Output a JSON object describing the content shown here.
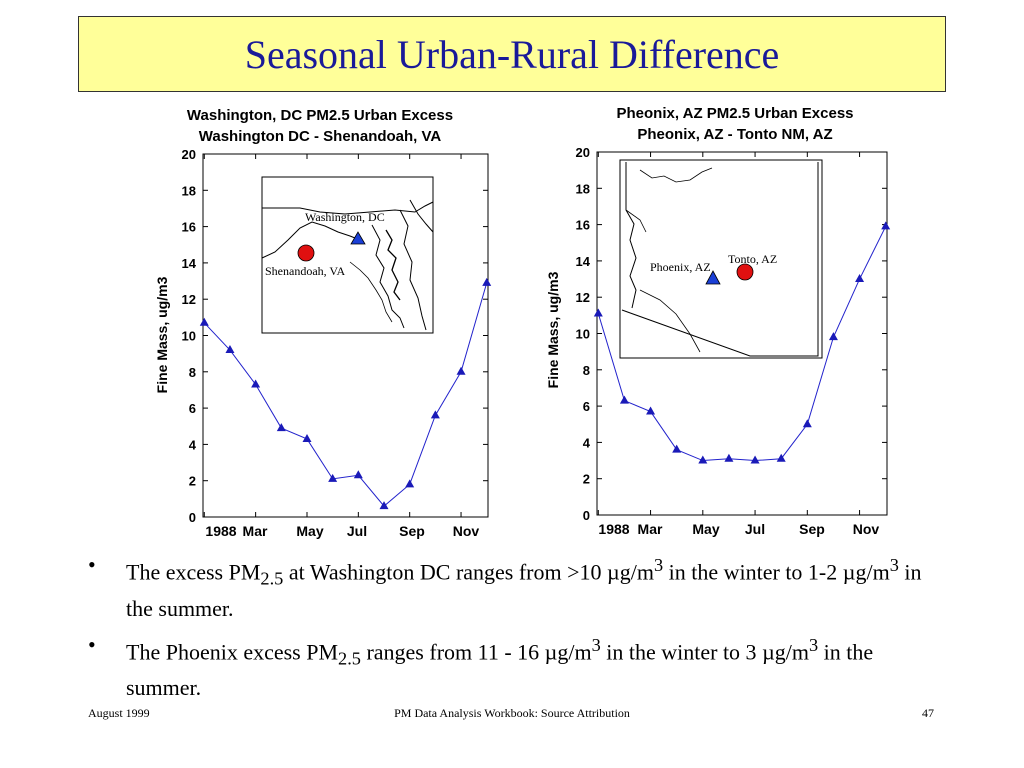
{
  "slide": {
    "title": "Seasonal Urban-Rural Difference",
    "bullets": [
      {
        "parts": [
          "The excess PM",
          "2.5",
          " at Washington DC ranges from >10 ",
          "µ",
          "g/m",
          "3",
          " in the winter to 1-2 ",
          "µ",
          "g/m",
          "3",
          " in the summer."
        ]
      },
      {
        "parts": [
          "The Phoenix excess PM",
          "2.5",
          " ranges from 11 - 16 ",
          "µ",
          "g/m",
          "3",
          " in the winter to 3 ",
          "µ",
          "g/m",
          "3",
          " in the summer."
        ]
      }
    ],
    "bullet_symbol": "•",
    "footer": {
      "left": "August 1999",
      "center": "PM Data Analysis Workbook: Source Attribution",
      "right": "47"
    }
  },
  "chart_data": [
    {
      "type": "line",
      "title": "Washington, DC PM2.5 Urban Excess",
      "subtitle": "Washington DC - Shenandoah, VA",
      "ylabel": "Fine Mass, ug/m3",
      "xlabel": "",
      "ylim": [
        0,
        20
      ],
      "yticks": [
        0,
        2,
        4,
        6,
        8,
        10,
        12,
        14,
        16,
        18,
        20
      ],
      "xtick_labels": [
        "1988",
        "Mar",
        "May",
        "Jul",
        "Sep",
        "Nov"
      ],
      "x": [
        1,
        2,
        3,
        4,
        5,
        6,
        7,
        8,
        9,
        10,
        11,
        12
      ],
      "values": [
        10.7,
        9.2,
        7.3,
        4.9,
        4.3,
        2.1,
        2.3,
        0.6,
        1.8,
        5.6,
        8.0,
        12.9
      ],
      "color": "#2222cc",
      "inset_map": {
        "labels": [
          "Washington, DC",
          "Shenandoah, VA"
        ],
        "urban_marker_color": "#1a3fd6",
        "rural_marker_color": "#e01010"
      }
    },
    {
      "type": "line",
      "title": "Pheonix, AZ PM2.5 Urban Excess",
      "subtitle": "Pheonix, AZ - Tonto NM, AZ",
      "ylabel": "Fine Mass, ug/m3",
      "xlabel": "",
      "ylim": [
        0,
        20
      ],
      "yticks": [
        0,
        2,
        4,
        6,
        8,
        10,
        12,
        14,
        16,
        18,
        20
      ],
      "xtick_labels": [
        "1988",
        "Mar",
        "May",
        "Jul",
        "Sep",
        "Nov"
      ],
      "x": [
        1,
        2,
        3,
        4,
        5,
        6,
        7,
        8,
        9,
        10,
        11,
        12
      ],
      "values": [
        11.1,
        6.3,
        5.7,
        3.6,
        3.0,
        3.1,
        3.0,
        3.1,
        5.0,
        9.8,
        13.0,
        15.9
      ],
      "color": "#2222cc",
      "inset_map": {
        "labels": [
          "Phoenix, AZ",
          "Tonto, AZ"
        ],
        "urban_marker_color": "#1a3fd6",
        "rural_marker_color": "#e01010"
      }
    }
  ]
}
